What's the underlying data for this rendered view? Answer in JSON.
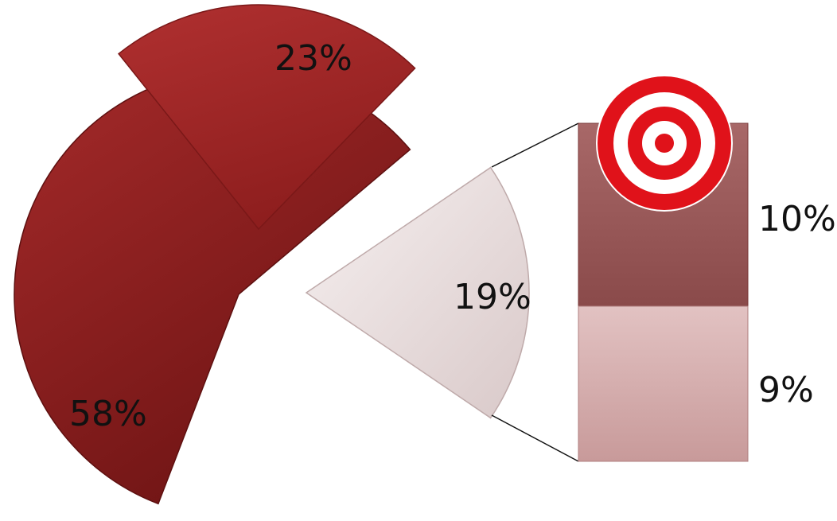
{
  "chart_data": {
    "type": "pie",
    "slices": [
      {
        "label": "58%",
        "value": 58,
        "color": "#8b1e1e"
      },
      {
        "label": "23%",
        "value": 23,
        "color": "#9e2626"
      },
      {
        "label": "19%",
        "value": 19,
        "color": "#e9dede"
      }
    ],
    "breakdown": {
      "of_slice": "19%",
      "segments": [
        {
          "label": "10%",
          "value": 10,
          "color": "#9a5a5a",
          "icon": "target-icon"
        },
        {
          "label": "9%",
          "value": 9,
          "color": "#d4aaaa"
        }
      ]
    }
  }
}
